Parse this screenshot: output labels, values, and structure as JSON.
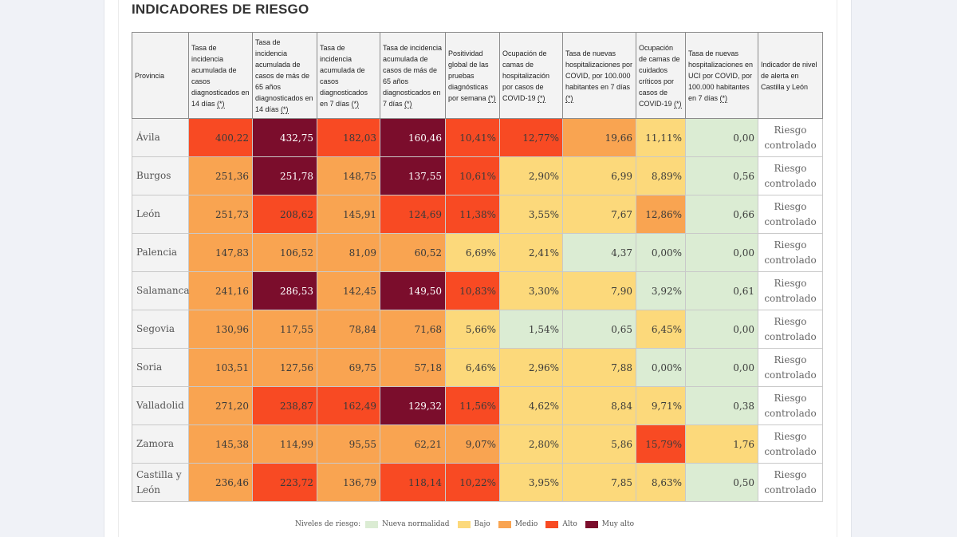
{
  "title": "INDICADORES DE RIESGO",
  "headers": [
    {
      "label": "Provincia",
      "info": ""
    },
    {
      "label": "Tasa de incidencia acumulada de casos diagnosticados en 14 días ",
      "info": "(*)"
    },
    {
      "label": "Tasa de incidencia acumulada de casos de más de 65 años diagnosticados en 14 días ",
      "info": "(*)"
    },
    {
      "label": "Tasa de incidencia acumulada de casos diagnosticados en 7 días ",
      "info": "(*)"
    },
    {
      "label": "Tasa de incidencia acumulada de casos de más de 65 años diagnosticados en 7 días ",
      "info": "(*)"
    },
    {
      "label": "Positividad global de las pruebas diagnósticas por semana ",
      "info": "(*)"
    },
    {
      "label": "Ocupación de camas de hospitalización por casos de COVID-19 ",
      "info": "(*)"
    },
    {
      "label": "Tasa de nuevas hospitalizaciones por COVID, por 100.000 habitantes en 7 días ",
      "info": "(*)"
    },
    {
      "label": "Ocupación de camas de cuidados críticos por casos de COVID-19 ",
      "info": "(*)"
    },
    {
      "label": "Tasa de nuevas hospitalizaciones en UCI por COVID, por 100.000 habitantes en 7 días ",
      "info": "(*)"
    },
    {
      "label": "Indicador de nivel de alerta en Castilla y León",
      "info": ""
    }
  ],
  "rows": [
    {
      "provincia": "Ávila",
      "alerta": "Riesgo controlado",
      "cells": [
        {
          "v": "400,22",
          "l": "alto"
        },
        {
          "v": "432,75",
          "l": "muyalto"
        },
        {
          "v": "182,03",
          "l": "alto"
        },
        {
          "v": "160,46",
          "l": "muyalto"
        },
        {
          "v": "10,41%",
          "l": "alto"
        },
        {
          "v": "12,77%",
          "l": "alto"
        },
        {
          "v": "19,66",
          "l": "medio"
        },
        {
          "v": "11,11%",
          "l": "bajo"
        },
        {
          "v": "0,00",
          "l": "nuevo"
        }
      ]
    },
    {
      "provincia": "Burgos",
      "alerta": "Riesgo controlado",
      "cells": [
        {
          "v": "251,36",
          "l": "medio"
        },
        {
          "v": "251,78",
          "l": "muyalto"
        },
        {
          "v": "148,75",
          "l": "medio"
        },
        {
          "v": "137,55",
          "l": "muyalto"
        },
        {
          "v": "10,61%",
          "l": "alto"
        },
        {
          "v": "2,90%",
          "l": "bajo"
        },
        {
          "v": "6,99",
          "l": "bajo"
        },
        {
          "v": "8,89%",
          "l": "bajo"
        },
        {
          "v": "0,56",
          "l": "nuevo"
        }
      ]
    },
    {
      "provincia": "León",
      "alerta": "Riesgo controlado",
      "cells": [
        {
          "v": "251,73",
          "l": "medio"
        },
        {
          "v": "208,62",
          "l": "alto"
        },
        {
          "v": "145,91",
          "l": "medio"
        },
        {
          "v": "124,69",
          "l": "alto"
        },
        {
          "v": "11,38%",
          "l": "alto"
        },
        {
          "v": "3,55%",
          "l": "bajo"
        },
        {
          "v": "7,67",
          "l": "bajo"
        },
        {
          "v": "12,86%",
          "l": "medio"
        },
        {
          "v": "0,66",
          "l": "nuevo"
        }
      ]
    },
    {
      "provincia": "Palencia",
      "alerta": "Riesgo controlado",
      "cells": [
        {
          "v": "147,83",
          "l": "medio"
        },
        {
          "v": "106,52",
          "l": "medio"
        },
        {
          "v": "81,09",
          "l": "medio"
        },
        {
          "v": "60,52",
          "l": "medio"
        },
        {
          "v": "6,69%",
          "l": "bajo"
        },
        {
          "v": "2,41%",
          "l": "bajo"
        },
        {
          "v": "4,37",
          "l": "nuevo"
        },
        {
          "v": "0,00%",
          "l": "nuevo"
        },
        {
          "v": "0,00",
          "l": "nuevo"
        }
      ]
    },
    {
      "provincia": "Salamanca",
      "alerta": "Riesgo controlado",
      "cells": [
        {
          "v": "241,16",
          "l": "medio"
        },
        {
          "v": "286,53",
          "l": "muyalto"
        },
        {
          "v": "142,45",
          "l": "medio"
        },
        {
          "v": "149,50",
          "l": "muyalto"
        },
        {
          "v": "10,83%",
          "l": "alto"
        },
        {
          "v": "3,30%",
          "l": "bajo"
        },
        {
          "v": "7,90",
          "l": "bajo"
        },
        {
          "v": "3,92%",
          "l": "nuevo"
        },
        {
          "v": "0,61",
          "l": "nuevo"
        }
      ]
    },
    {
      "provincia": "Segovia",
      "alerta": "Riesgo controlado",
      "cells": [
        {
          "v": "130,96",
          "l": "medio"
        },
        {
          "v": "117,55",
          "l": "medio"
        },
        {
          "v": "78,84",
          "l": "medio"
        },
        {
          "v": "71,68",
          "l": "medio"
        },
        {
          "v": "5,66%",
          "l": "bajo"
        },
        {
          "v": "1,54%",
          "l": "nuevo"
        },
        {
          "v": "0,65",
          "l": "nuevo"
        },
        {
          "v": "6,45%",
          "l": "bajo"
        },
        {
          "v": "0,00",
          "l": "nuevo"
        }
      ]
    },
    {
      "provincia": "Soria",
      "alerta": "Riesgo controlado",
      "cells": [
        {
          "v": "103,51",
          "l": "medio"
        },
        {
          "v": "127,56",
          "l": "medio"
        },
        {
          "v": "69,75",
          "l": "medio"
        },
        {
          "v": "57,18",
          "l": "medio"
        },
        {
          "v": "6,46%",
          "l": "bajo"
        },
        {
          "v": "2,96%",
          "l": "bajo"
        },
        {
          "v": "7,88",
          "l": "bajo"
        },
        {
          "v": "0,00%",
          "l": "nuevo"
        },
        {
          "v": "0,00",
          "l": "nuevo"
        }
      ]
    },
    {
      "provincia": "Valladolid",
      "alerta": "Riesgo controlado",
      "cells": [
        {
          "v": "271,20",
          "l": "medio"
        },
        {
          "v": "238,87",
          "l": "alto"
        },
        {
          "v": "162,49",
          "l": "alto"
        },
        {
          "v": "129,32",
          "l": "muyalto"
        },
        {
          "v": "11,56%",
          "l": "alto"
        },
        {
          "v": "4,62%",
          "l": "bajo"
        },
        {
          "v": "8,84",
          "l": "bajo"
        },
        {
          "v": "9,71%",
          "l": "bajo"
        },
        {
          "v": "0,38",
          "l": "nuevo"
        }
      ]
    },
    {
      "provincia": "Zamora",
      "alerta": "Riesgo controlado",
      "cells": [
        {
          "v": "145,38",
          "l": "medio"
        },
        {
          "v": "114,99",
          "l": "medio"
        },
        {
          "v": "95,55",
          "l": "medio"
        },
        {
          "v": "62,21",
          "l": "medio"
        },
        {
          "v": "9,07%",
          "l": "medio"
        },
        {
          "v": "2,80%",
          "l": "bajo"
        },
        {
          "v": "5,86",
          "l": "bajo"
        },
        {
          "v": "15,79%",
          "l": "alto"
        },
        {
          "v": "1,76",
          "l": "bajo"
        }
      ]
    },
    {
      "provincia": "Castilla y León",
      "alerta": "Riesgo controlado",
      "cells": [
        {
          "v": "236,46",
          "l": "medio"
        },
        {
          "v": "223,72",
          "l": "alto"
        },
        {
          "v": "136,79",
          "l": "medio"
        },
        {
          "v": "118,14",
          "l": "alto"
        },
        {
          "v": "10,22%",
          "l": "alto"
        },
        {
          "v": "3,95%",
          "l": "bajo"
        },
        {
          "v": "7,85",
          "l": "bajo"
        },
        {
          "v": "8,63%",
          "l": "bajo"
        },
        {
          "v": "0,50",
          "l": "nuevo"
        }
      ]
    }
  ],
  "legend": {
    "label": "Niveles de riesgo:",
    "items": [
      {
        "key": "nuevo",
        "label": "Nueva normalidad",
        "color": "#dbecd3"
      },
      {
        "key": "bajo",
        "label": "Bajo",
        "color": "#fcd97b"
      },
      {
        "key": "medio",
        "label": "Medio",
        "color": "#f9a451"
      },
      {
        "key": "alto",
        "label": "Alto",
        "color": "#f84a23"
      },
      {
        "key": "muyalto",
        "label": "Muy alto",
        "color": "#7b0d2c"
      }
    ]
  }
}
